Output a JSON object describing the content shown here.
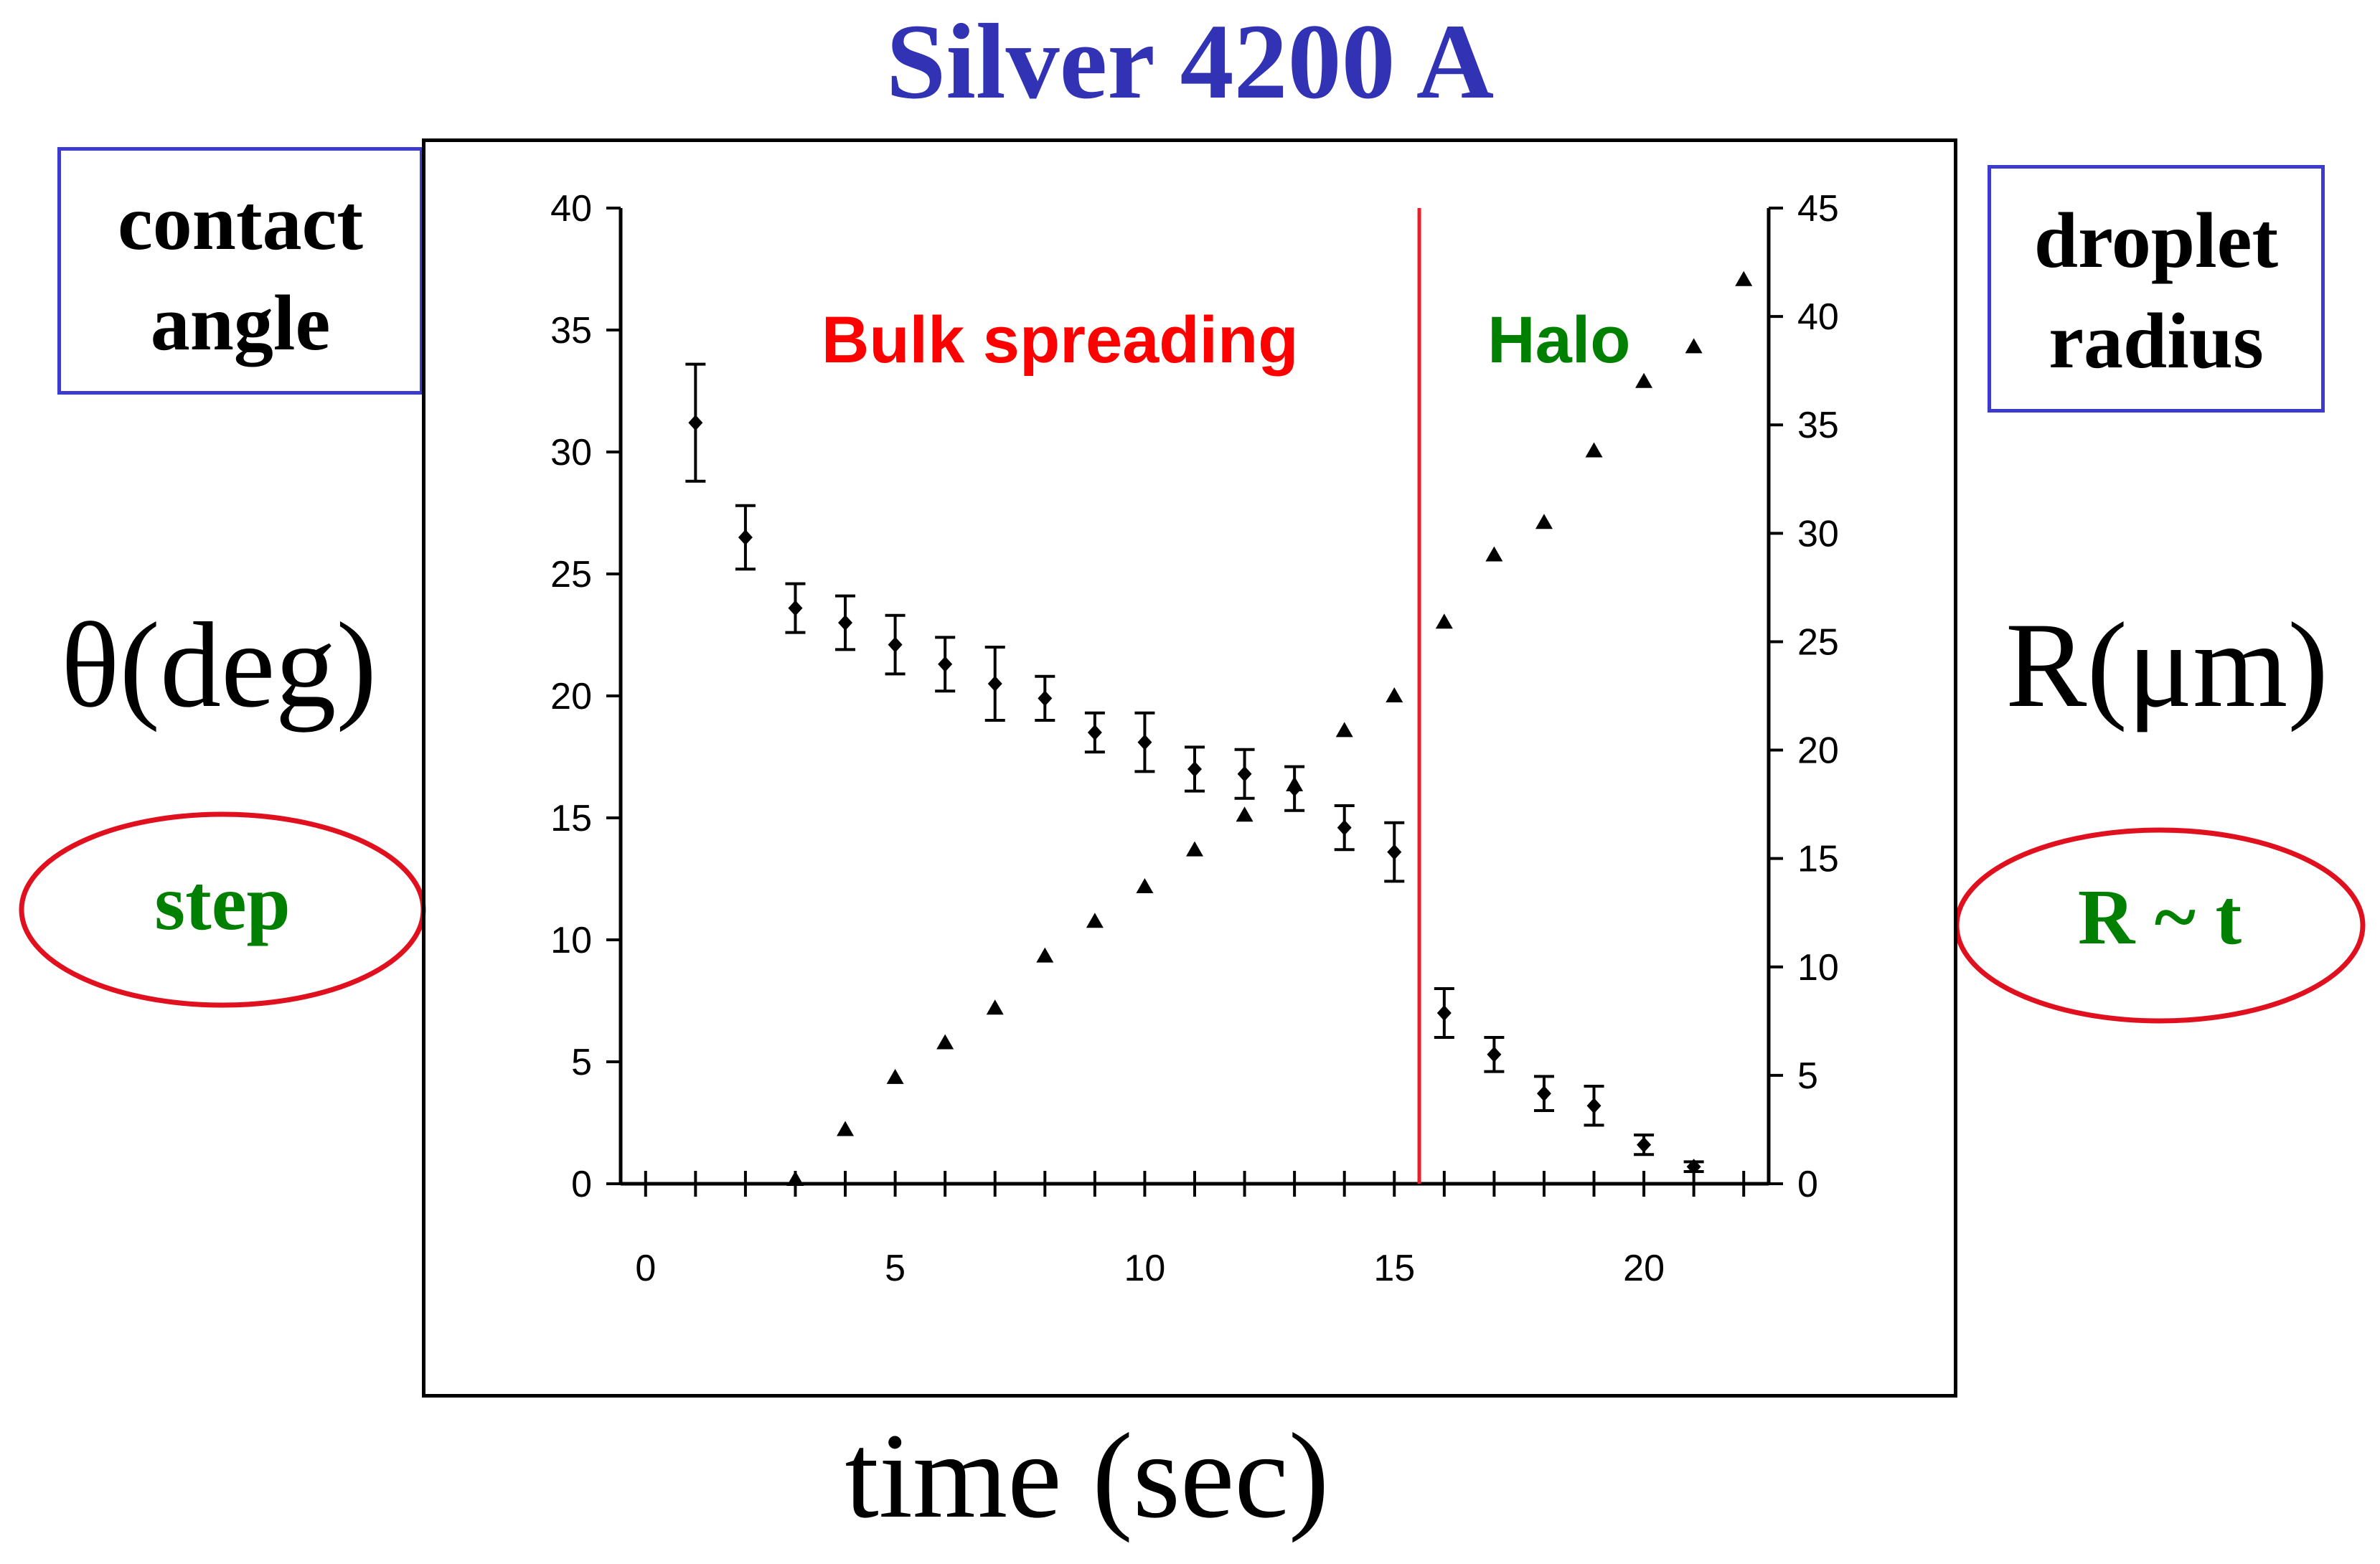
{
  "header": {
    "title": "Silver 4200 A"
  },
  "left_box": {
    "line1": "contact",
    "line2": "angle"
  },
  "right_box": {
    "line1": "droplet",
    "line2": "radius"
  },
  "left_axis_name": "θ(deg)",
  "right_axis_name": "R(μm)",
  "x_axis_name": "time (sec)",
  "left_note": "step",
  "right_note": "R ~ t",
  "colors": {
    "title": "#3232b4",
    "bulk": "#ff0000",
    "halo": "#008000",
    "box_border": "#3b3bd0",
    "divider": "#e8202a"
  },
  "chart_data": {
    "type": "scatter",
    "x": {
      "label": "time (sec)",
      "range": [
        -0.5,
        22.5
      ],
      "ticks": [
        0,
        5,
        10,
        15,
        20
      ]
    },
    "y_left": {
      "label": "θ(deg)",
      "range": [
        0,
        40
      ],
      "ticks": [
        0,
        5,
        10,
        15,
        20,
        25,
        30,
        35,
        40
      ]
    },
    "y_right": {
      "label": "R(μm)",
      "range": [
        0,
        45
      ],
      "ticks": [
        0,
        5,
        10,
        15,
        20,
        25,
        30,
        35,
        40,
        45
      ]
    },
    "regions": [
      {
        "label": "Bulk spreading",
        "color": "#ff0000"
      },
      {
        "label": "Halo",
        "color": "#008000"
      }
    ],
    "divider_x": 15.5,
    "series": [
      {
        "name": "contact angle",
        "axis": "left",
        "marker": "diamond",
        "points": [
          {
            "x": 1,
            "y": 31.2,
            "err": 2.4
          },
          {
            "x": 2,
            "y": 26.5,
            "err": 1.3
          },
          {
            "x": 3,
            "y": 23.6,
            "err": 1.0
          },
          {
            "x": 4,
            "y": 23.0,
            "err": 1.1
          },
          {
            "x": 5,
            "y": 22.1,
            "err": 1.2
          },
          {
            "x": 6,
            "y": 21.3,
            "err": 1.1
          },
          {
            "x": 7,
            "y": 20.5,
            "err": 1.5
          },
          {
            "x": 8,
            "y": 19.9,
            "err": 0.9
          },
          {
            "x": 9,
            "y": 18.5,
            "err": 0.8
          },
          {
            "x": 10,
            "y": 18.1,
            "err": 1.2
          },
          {
            "x": 11,
            "y": 17.0,
            "err": 0.9
          },
          {
            "x": 12,
            "y": 16.8,
            "err": 1.0
          },
          {
            "x": 13,
            "y": 16.2,
            "err": 0.9
          },
          {
            "x": 14,
            "y": 14.6,
            "err": 0.9
          },
          {
            "x": 15,
            "y": 13.6,
            "err": 1.2
          },
          {
            "x": 16,
            "y": 7.0,
            "err": 1.0
          },
          {
            "x": 17,
            "y": 5.3,
            "err": 0.7
          },
          {
            "x": 18,
            "y": 3.7,
            "err": 0.7
          },
          {
            "x": 19,
            "y": 3.2,
            "err": 0.8
          },
          {
            "x": 20,
            "y": 1.6,
            "err": 0.4
          },
          {
            "x": 21,
            "y": 0.7,
            "err": 0.2
          }
        ]
      },
      {
        "name": "droplet radius",
        "axis": "right",
        "marker": "triangle",
        "points": [
          {
            "x": 3,
            "y": 0.2
          },
          {
            "x": 4,
            "y": 2.5
          },
          {
            "x": 5,
            "y": 4.9
          },
          {
            "x": 6,
            "y": 6.5
          },
          {
            "x": 7,
            "y": 8.1
          },
          {
            "x": 8,
            "y": 10.5
          },
          {
            "x": 9,
            "y": 12.1
          },
          {
            "x": 10,
            "y": 13.7
          },
          {
            "x": 11,
            "y": 15.4
          },
          {
            "x": 12,
            "y": 17.0
          },
          {
            "x": 13,
            "y": 18.4
          },
          {
            "x": 14,
            "y": 20.9
          },
          {
            "x": 15,
            "y": 22.5
          },
          {
            "x": 16,
            "y": 25.9
          },
          {
            "x": 17,
            "y": 29.0
          },
          {
            "x": 18,
            "y": 30.5
          },
          {
            "x": 19,
            "y": 33.8
          },
          {
            "x": 20,
            "y": 37.0
          },
          {
            "x": 21,
            "y": 38.6
          },
          {
            "x": 22,
            "y": 41.7
          }
        ]
      }
    ]
  }
}
